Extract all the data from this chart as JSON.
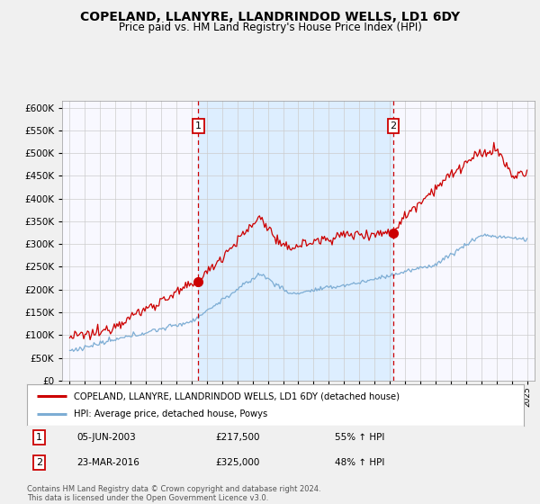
{
  "title": "COPELAND, LLANYRE, LLANDRINDOD WELLS, LD1 6DY",
  "subtitle": "Price paid vs. HM Land Registry's House Price Index (HPI)",
  "ytick_values": [
    0,
    50000,
    100000,
    150000,
    200000,
    250000,
    300000,
    350000,
    400000,
    450000,
    500000,
    550000,
    600000
  ],
  "ylim": [
    0,
    615000
  ],
  "year_start": 1995,
  "year_end": 2025,
  "marker1_year": 2003.43,
  "marker1_value": 217500,
  "marker1_label": "1",
  "marker1_date": "05-JUN-2003",
  "marker1_price": "£217,500",
  "marker1_pct": "55% ↑ HPI",
  "marker2_year": 2016.23,
  "marker2_value": 325000,
  "marker2_label": "2",
  "marker2_date": "23-MAR-2016",
  "marker2_price": "£325,000",
  "marker2_pct": "48% ↑ HPI",
  "red_line_color": "#cc0000",
  "blue_line_color": "#7dadd4",
  "highlight_color": "#ddeeff",
  "background_color": "#f0f0f0",
  "plot_bg_color": "#f8f8ff",
  "grid_color": "#cccccc",
  "legend_label_red": "COPELAND, LLANYRE, LLANDRINDOD WELLS, LD1 6DY (detached house)",
  "legend_label_blue": "HPI: Average price, detached house, Powys",
  "footer": "Contains HM Land Registry data © Crown copyright and database right 2024.\nThis data is licensed under the Open Government Licence v3.0.",
  "dashed_line_color": "#cc0000"
}
